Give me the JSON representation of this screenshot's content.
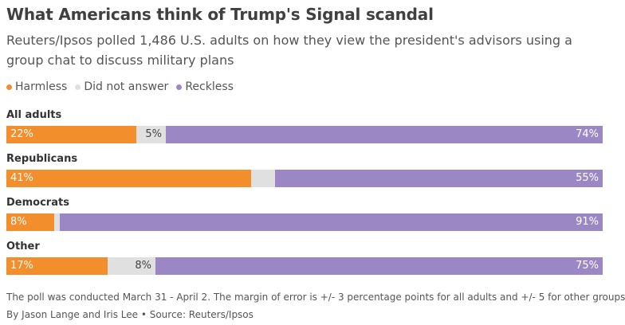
{
  "colors": {
    "harmless": "#f28e2b",
    "did_not_answer": "#e0e0e0",
    "reckless": "#9b87c4"
  },
  "chart_data": {
    "type": "bar",
    "orientation": "horizontal-stacked",
    "title": "What Americans think of Trump's Signal scandal",
    "subtitle": "Reuters/Ipsos polled 1,486 U.S. adults on how they view the president's advisors using a group chat to discuss military plans",
    "legend": [
      "Harmless",
      "Did not answer",
      "Reckless"
    ],
    "categories": [
      "All adults",
      "Republicans",
      "Democrats",
      "Other"
    ],
    "series": [
      {
        "name": "Harmless",
        "values": [
          22,
          41,
          8,
          17
        ],
        "labels": [
          "22%",
          "41%",
          "8%",
          "17%"
        ]
      },
      {
        "name": "Did not answer",
        "values": [
          5,
          4,
          1,
          8
        ],
        "labels": [
          "5%",
          "",
          "",
          "8%"
        ]
      },
      {
        "name": "Reckless",
        "values": [
          74,
          55,
          91,
          75
        ],
        "labels": [
          "74%",
          "55%",
          "91%",
          "75%"
        ]
      }
    ],
    "footnote": "The poll was conducted March 31 - April 2. The margin of error is +/- 3 percentage points for all adults and +/- 5 for other groups",
    "credit": "By Jason Lange and Iris Lee • Source: Reuters/Ipsos"
  }
}
